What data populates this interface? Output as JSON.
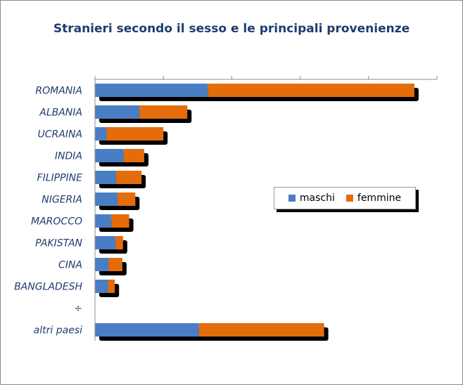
{
  "chart_data": {
    "type": "bar",
    "orientation": "horizontal",
    "stacked": true,
    "title": "Stranieri secondo il sesso e le principali provenienze",
    "categories": [
      "ROMANIA",
      "ALBANIA",
      "UCRAINA",
      "INDIA",
      "FILIPPINE",
      "NIGERIA",
      "MAROCCO",
      "PAKISTAN",
      "CINA",
      "BANGLADESH",
      "÷",
      "altri paesi"
    ],
    "series": [
      {
        "name": "maschi",
        "color": "#4a7ec4",
        "values": [
          16.5,
          6.5,
          1.7,
          4.2,
          3.1,
          3.3,
          2.4,
          3.0,
          2.0,
          1.9,
          null,
          15.2
        ]
      },
      {
        "name": "femmine",
        "color": "#e46c0a",
        "values": [
          30.2,
          7.0,
          8.3,
          3.0,
          3.7,
          2.6,
          2.6,
          1.1,
          2.0,
          1.0,
          null,
          18.3
        ]
      }
    ],
    "xlim": [
      0,
      50
    ],
    "xticks_count": 5,
    "gridlines": false,
    "shadow": true,
    "legend": {
      "placement": "right-middle",
      "entries": [
        "maschi",
        "femmine"
      ]
    }
  }
}
